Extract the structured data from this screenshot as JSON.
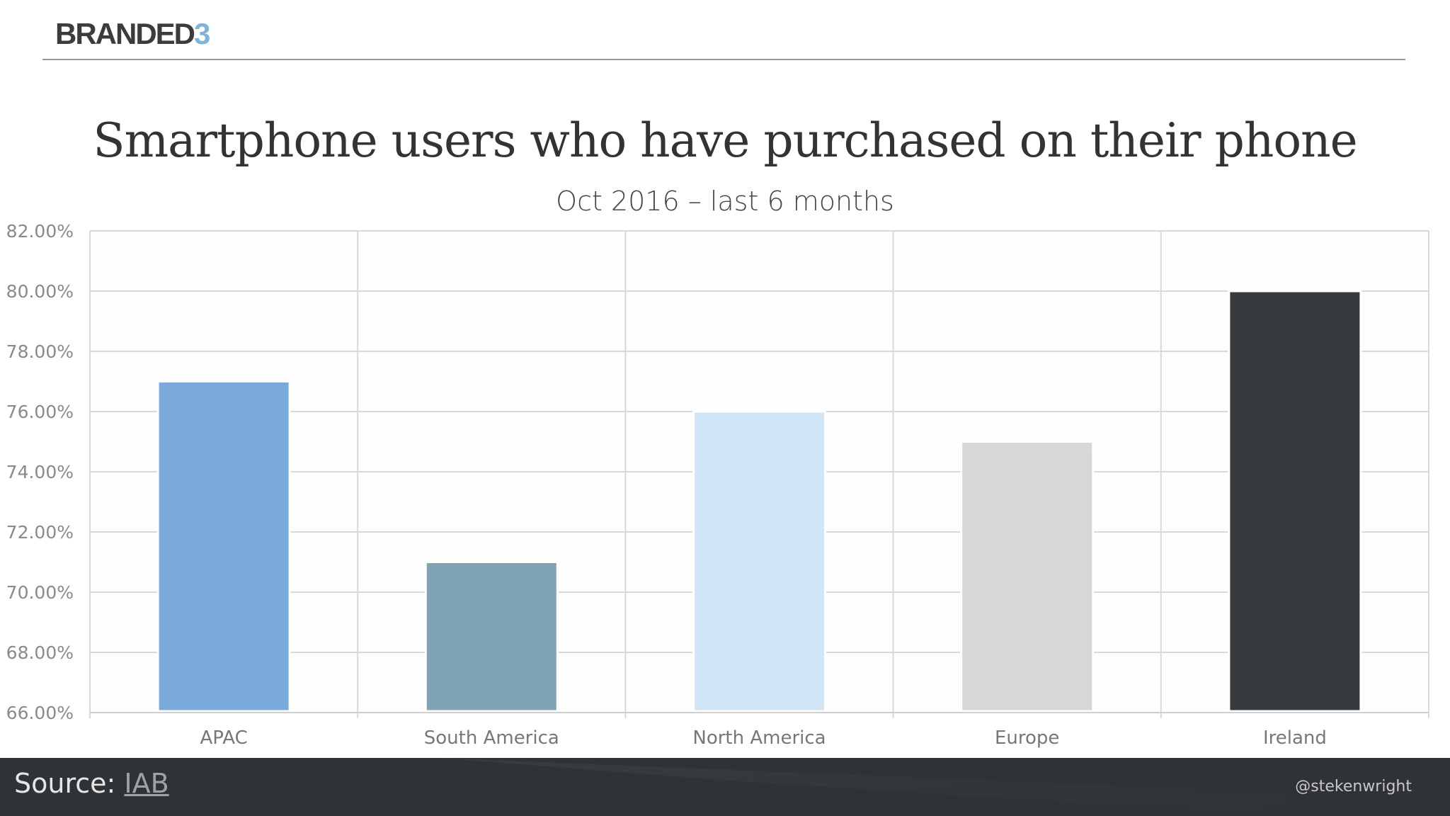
{
  "header": {
    "logo_text": "BRANDED",
    "logo_accent": "3"
  },
  "chart_data": {
    "type": "bar",
    "title": "Smartphone users who have purchased on their phone",
    "subtitle": "Oct 2016 – last 6 months",
    "categories": [
      "APAC",
      "South America",
      "North America",
      "Europe",
      "Ireland"
    ],
    "values": [
      77,
      71,
      76,
      75,
      80
    ],
    "colors": [
      "#7aa9db",
      "#7fa5b4",
      "#d0e5f5",
      "#d8d6d9",
      "#373b3e"
    ],
    "ylim": [
      66,
      82
    ],
    "yticks": [
      "66.00%",
      "68.00%",
      "70.00%",
      "72.00%",
      "74.00%",
      "76.00%",
      "78.00%",
      "80.00%",
      "82.00%"
    ],
    "xlabel": "",
    "ylabel": "",
    "grid": true,
    "legend": "none"
  },
  "footer": {
    "source_label": "Source:",
    "source_link": "IAB",
    "handle": "@stekenwright"
  }
}
